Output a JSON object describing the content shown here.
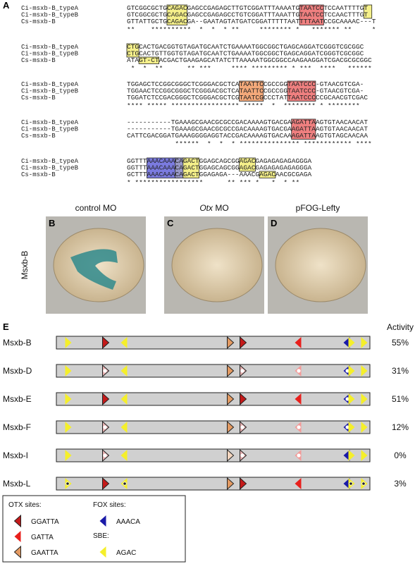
{
  "panel_a": {
    "label": "A",
    "names": [
      "Ci-msxb-B_typeA",
      "Ci-msxb-B_typeB",
      "Cs-msxb-B"
    ],
    "blocks": [
      {
        "rows": [
          "GTCGGCGCTGCAGACGAGCCGAGAGCTTGTCGGATTTAAAATGTAATCCTCCAATTTTGT",
          "GTCGGCGCTGCAGACGAGCCGAGAGCCTGTCGGATTTAAATTGTAATCCTCCAACTTTGT",
          "GTTATTGCTGCAGACGA--GAATAGTATGATCGGATTTTTAATTTTAATCCGCAAAAC---T"
        ],
        "stars": "**    **********  *  *  * **     ******** *   ******* **     *"
      },
      {
        "rows": [
          "CTGCACTGACGGTGTAGATGCAATCTGAAAATGGCGGCTGAGCAGGATCGGGTCGCGGC",
          "CTGCACTGTTGGTGTAGATGCAATCTGAAAATGGCGGCTGAGCAGGATCGGGTCGCGGC",
          "ATAGT-CTACGACTGAAGAGCATATCTTAAAAATGGCGGCCAAGAAGGATCGACGCGCGGC"
        ],
        "stars": " *  *  **      ** ***     **** ********* * ***  ****   ******"
      },
      {
        "rows": [
          "TGGAGCTCCGGCGGGCTCGGGACGCTCATAATTCCGCCGGTAATCCC-GTAACGTCGA-",
          "TGGAACTCCGGCGGGCTCGGGACGCTCATAATTCCGCCGGTAATCCC-GTAACGTCGA-",
          "TGGATCTCCGACGGGCTCGGGACGCTCGTAATCGCCCTATTAATCCCCCGCAACGTCGAC"
        ],
        "stars": "**** ***** ***************** *****  *  ******** * ******** "
      },
      {
        "rows": [
          "-----------TGAAAGCGAACGCGCCGACAAAAGTGACGAAGATTAAGTGTAACAACAT",
          "-----------TGAAAGCGAACGCGCCGACAAAAGTGACGAAGATTAAGTGTAACAACAT",
          "CATTCGACGGATGAAAGGGGAGGTACCGACAAAAGTGACAAAGATTAAGTGTAGCAACAA"
        ],
        "stars": "            ******  *  *  * *************** ************ ****"
      },
      {
        "rows": [
          "GGTTTAAACAAACAGACTGGAGCAGCGGAGACGAGAGAGAGAGGGA",
          "GGTTTAAACAAACAGACTGGAGCAGCGGAGACGAGAGAGAGAGGGA",
          "GCTTTAAACAAACAGACTGGAGAGA---AAACGAGACAACGCGAGA"
        ],
        "stars": "* *****************      ** *** *   *  * **"
      }
    ]
  },
  "panels": [
    {
      "label": "B",
      "title": "control MO"
    },
    {
      "label": "C",
      "title_italic": "Otx",
      "title": "MO"
    },
    {
      "label": "D",
      "title": "pFOG-Lefty"
    }
  ],
  "row_label": "Msxb-B",
  "panel_e": {
    "label": "E",
    "activity_header": "Activity",
    "constructs": [
      {
        "name": "Msxb-B",
        "activity": "55%"
      },
      {
        "name": "Msxb-D",
        "activity": "31%"
      },
      {
        "name": "Msxb-E",
        "activity": "51%"
      },
      {
        "name": "Msxb-F",
        "activity": "12%"
      },
      {
        "name": "Msxb-I",
        "activity": "0%"
      },
      {
        "name": "Msxb-L",
        "activity": "3%"
      }
    ],
    "legend": {
      "otx_title": "OTX sites:",
      "otx": [
        "GGATTA",
        "GATTA",
        "GAATTA"
      ],
      "fox_title": "FOX sites:",
      "fox": "AAACA",
      "sbe_title": "SBE:",
      "sbe": "AGAC"
    }
  }
}
